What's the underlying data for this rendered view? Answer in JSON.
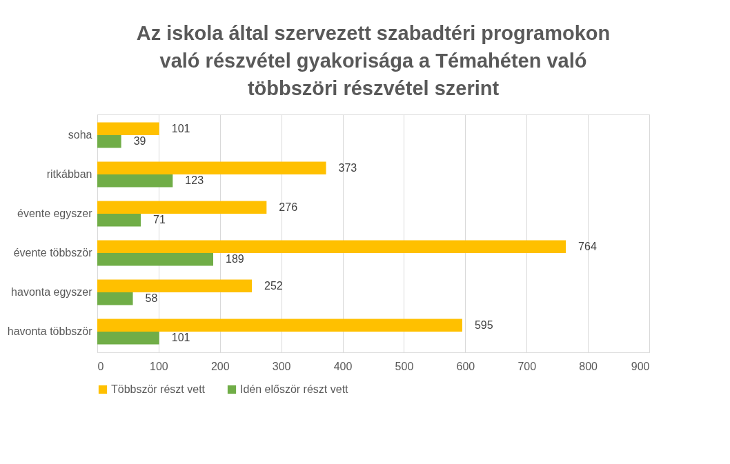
{
  "chart_data": {
    "type": "bar",
    "orientation": "horizontal",
    "title": "Az iskola által szervezett szabadtéri programokon való részvétel gyakorisága a Témahéten való többszöri részvétel szerint",
    "categories": [
      "soha",
      "ritkábban",
      "évente egyszer",
      "évente többször",
      "havonta egyszer",
      "havonta többször"
    ],
    "series": [
      {
        "name": "Többször részt vett",
        "color": "#ffc000",
        "values": [
          101,
          373,
          276,
          764,
          252,
          595
        ]
      },
      {
        "name": "Idén először részt vett",
        "color": "#70ad47",
        "values": [
          39,
          123,
          71,
          189,
          58,
          101
        ]
      }
    ],
    "xlim": [
      0,
      900
    ],
    "xticks": [
      0,
      100,
      200,
      300,
      400,
      500,
      600,
      700,
      800,
      900
    ],
    "grid": "x",
    "legend": "bottom",
    "data_labels": true
  }
}
